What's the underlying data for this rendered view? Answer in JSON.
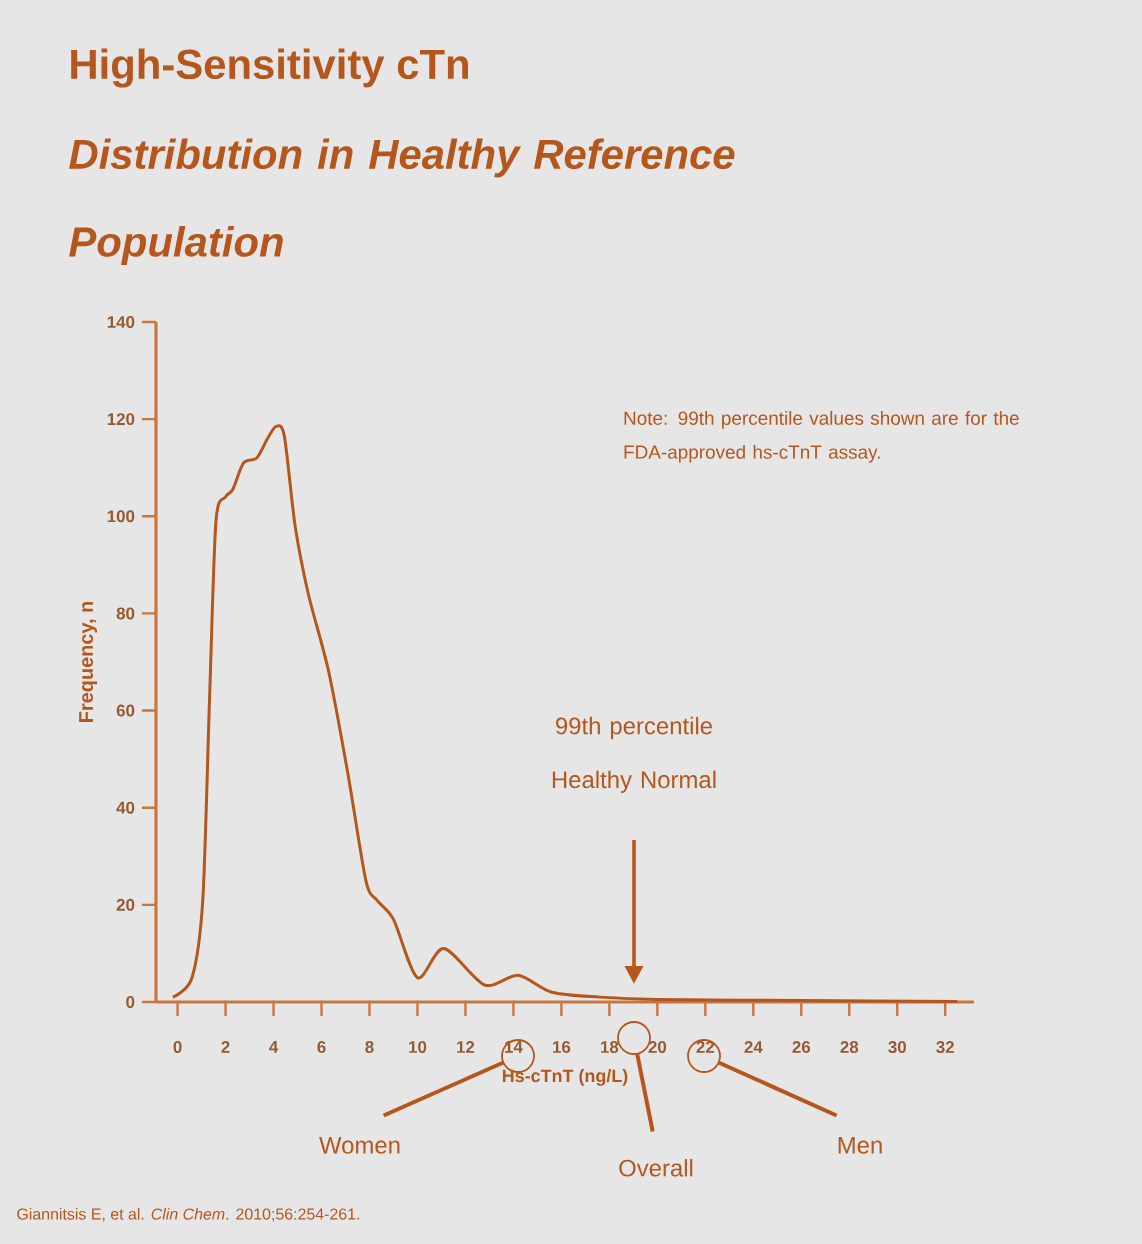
{
  "chart_data": {
    "type": "line",
    "title": "High-Sensitivity cTn",
    "subtitle": "Distribution in Healthy Reference Population",
    "xlabel": "Hs-cTnT (ng/L)",
    "ylabel": "Frequency, n",
    "x": [
      -0.2,
      0.6,
      1.05,
      1.33,
      1.6,
      2.0,
      2.3,
      2.75,
      3.3,
      3.75,
      4.1,
      4.45,
      4.9,
      5.45,
      6.3,
      7.1,
      7.85,
      8.3,
      9.0,
      10.0,
      11.1,
      12.8,
      14.2,
      15.6,
      17.6,
      20,
      26,
      32.5
    ],
    "values": [
      1,
      5,
      21,
      62,
      99,
      104,
      105.5,
      111,
      112,
      116,
      118.5,
      116.5,
      98,
      84,
      68,
      47,
      25,
      21,
      17,
      5,
      11,
      3.5,
      5.5,
      2,
      1,
      0.5,
      0.3,
      0.1
    ],
    "color": "#b5561c",
    "xlim": [
      -0.9,
      33.2
    ],
    "ylim": [
      0,
      140
    ],
    "xticks": [
      0,
      2,
      4,
      6,
      8,
      10,
      12,
      14,
      16,
      18,
      20,
      22,
      24,
      26,
      28,
      30,
      32
    ],
    "yticks": [
      0,
      20,
      40,
      60,
      80,
      100,
      120,
      140
    ],
    "marker": "none",
    "annotations": [
      "Note: 99th percentile values shown are for the FDA-approved hs-cTnT assay.",
      "99th percentile Healthy Normal",
      "Women",
      "Overall",
      "Men",
      "Giannitsis E, et al. *Clin Chem*. 2010;56:254-261."
    ]
  }
}
